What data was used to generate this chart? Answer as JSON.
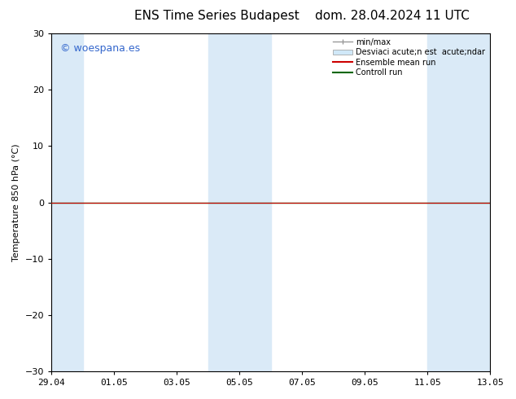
{
  "title": "ENS Time Series Budapest",
  "title2": "dom. 28.04.2024 11 UTC",
  "ylabel": "Temperature 850 hPa (°C)",
  "ylim": [
    -30,
    30
  ],
  "yticks": [
    -30,
    -20,
    -10,
    0,
    10,
    20,
    30
  ],
  "xtick_labels": [
    "29.04",
    "01.05",
    "03.05",
    "05.05",
    "07.05",
    "09.05",
    "11.05",
    "13.05"
  ],
  "background_color": "#ffffff",
  "plot_bg_color": "#ffffff",
  "band_color": "#daeaf7",
  "line_color_red": "#cc0000",
  "line_color_green": "#006600",
  "minmax_color": "#999999",
  "std_color": "#d0e8f8",
  "watermark_text": "© woespana.es",
  "watermark_color": "#3366cc",
  "legend_label_minmax": "min/max",
  "legend_label_std": "Desviaci acute;n est  acute;ndar",
  "legend_label_ens": "Ensemble mean run",
  "legend_label_ctrl": "Controll run",
  "title_fontsize": 11,
  "label_fontsize": 8,
  "tick_fontsize": 8,
  "watermark_fontsize": 9,
  "legend_fontsize": 7
}
